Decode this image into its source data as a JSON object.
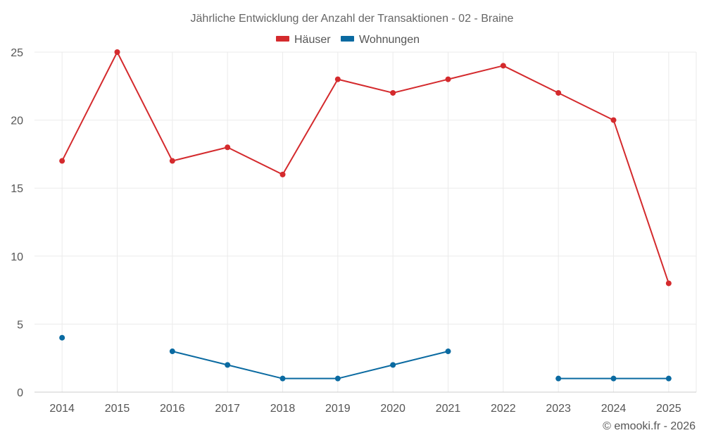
{
  "chart_data": {
    "type": "line",
    "title": "Jährliche Entwicklung der Anzahl der Transaktionen - 02 - Braine",
    "categories": [
      "2014",
      "2015",
      "2016",
      "2017",
      "2018",
      "2019",
      "2020",
      "2021",
      "2022",
      "2023",
      "2024",
      "2025"
    ],
    "series": [
      {
        "name": "Häuser",
        "color": "#d42a2d",
        "values": [
          17,
          25,
          17,
          18,
          16,
          23,
          22,
          23,
          24,
          22,
          20,
          8
        ]
      },
      {
        "name": "Wohnungen",
        "color": "#0a6aa1",
        "values": [
          4,
          null,
          3,
          2,
          1,
          1,
          2,
          3,
          null,
          1,
          1,
          1
        ]
      }
    ],
    "yticks": [
      0,
      5,
      10,
      15,
      20,
      25
    ],
    "ylim": [
      0,
      25
    ],
    "xlabel": "",
    "ylabel": "",
    "grid": true,
    "legend_position": "top-center"
  },
  "credit": "© emooki.fr - 2026"
}
